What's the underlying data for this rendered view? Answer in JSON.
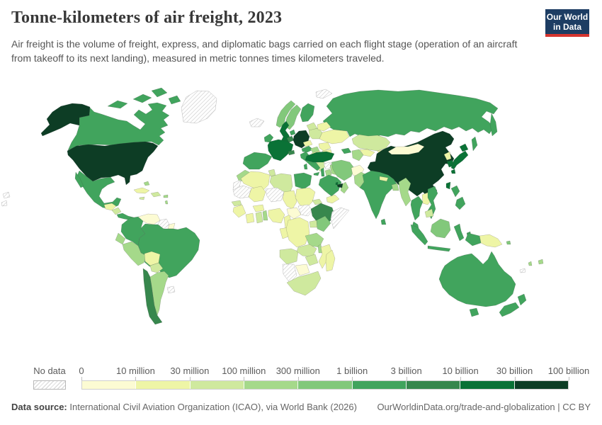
{
  "header": {
    "title": "Tonne-kilometers of air freight, 2023",
    "subtitle": "Air freight is the volume of freight, express, and diplomatic bags carried on each flight stage (operation of an aircraft from takeoff to its next landing), measured in metric tonnes times kilometers traveled."
  },
  "logo": {
    "line1": "Our World",
    "line2": "in Data",
    "bg_color": "#1d3d63",
    "accent_color": "#d5352f"
  },
  "chart_data": {
    "type": "choropleth_map",
    "title": "Tonne-kilometers of air freight, 2023",
    "year": 2023,
    "unit": "metric tonne-kilometers of air freight",
    "legend": {
      "no_data_label": "No data",
      "tick_labels": [
        "0",
        "10 million",
        "30 million",
        "100 million",
        "300 million",
        "1 billion",
        "3 billion",
        "10 billion",
        "30 billion",
        "100 billion"
      ],
      "bucket_ranges": [
        "0–10 million",
        "10–30 million",
        "30–100 million",
        "100–300 million",
        "300 million–1 billion",
        "1–3 billion",
        "3–10 billion",
        "10–30 billion",
        "30–100 billion"
      ],
      "colors": [
        "#fcfbd3",
        "#eef5a6",
        "#cfe99e",
        "#a5d98a",
        "#82c87b",
        "#41a45d",
        "#37874d",
        "#0a7236",
        "#0d3d25"
      ],
      "no_data_pattern": "diagonal-hatch",
      "position": "bottom"
    },
    "country_buckets": {
      "united-states": 8,
      "canada": 5,
      "greenland": "no-data",
      "mexico": 5,
      "guatemala": 1,
      "nicaragua": 2,
      "costa-rica-panama": 5,
      "cuba": 1,
      "jamaica": 2,
      "hispaniola": 2,
      "puerto-rico": 3,
      "bahamas": 3,
      "lesser-antilles": 3,
      "colombia": 5,
      "venezuela": 0,
      "guyana": "no-data",
      "suriname": 0,
      "ecuador": 3,
      "peru": 3,
      "brazil": 5,
      "bolivia": 1,
      "paraguay": 2,
      "chile": 6,
      "argentina": 3,
      "uruguay": "no-data",
      "iceland": "no-data",
      "svalbard": "no-data",
      "norway": 4,
      "sweden": 4,
      "finland": 5,
      "denmark": 5,
      "united-kingdom": 7,
      "ireland": 5,
      "france": 7,
      "belgium-netherlands": 6,
      "germany": 8,
      "switzerland": 6,
      "austria": 5,
      "czechia": 1,
      "poland": 2,
      "baltics": 2,
      "belarus": 1,
      "ukraine": 1,
      "romania": 1,
      "hungary": 3,
      "balkans": 1,
      "bulgaria": 1,
      "greece": 2,
      "italy": 5,
      "spain": 5,
      "russia": 5,
      "kazakhstan": 2,
      "uzbekistan": 1,
      "turkmenistan": 3,
      "kyrgyzstan-tajikistan": 1,
      "caucasus": 5,
      "turkey": 7,
      "syria": "no-data",
      "israel": 5,
      "jordan": 3,
      "iraq": 3,
      "iran": 4,
      "saudi-arabia": 5,
      "yemen": 1,
      "oman": 3,
      "united-arab-emirates": 8,
      "qatar": 7,
      "afghanistan": 0,
      "pakistan": 3,
      "india": 5,
      "nepal": 1,
      "bangladesh": 3,
      "sri-lanka": 5,
      "myanmar": 3,
      "thailand": 5,
      "laos": 1,
      "vietnam": 5,
      "cambodia": 2,
      "malaysia": 5,
      "indonesia": 5,
      "borneo": 4,
      "philippines": 5,
      "taiwan": 7,
      "china": 8,
      "mongolia": 0,
      "north-korea": 1,
      "south-korea": 7,
      "japan": 7,
      "morocco": 3,
      "western-sahara": "no-data",
      "algeria": 1,
      "tunisia": 2,
      "libya": 2,
      "egypt": 5,
      "mauritania": "no-data",
      "mali": 1,
      "niger": "no-data",
      "chad": 1,
      "sudan": 1,
      "south-sudan": "no-data",
      "eritrea": 2,
      "ethiopia": 6,
      "somalia": "no-data",
      "central-african-republic": 0,
      "senegal": 2,
      "guinea": 1,
      "cote-divoire": 1,
      "ghana": 2,
      "benin": 3,
      "burkina-faso": 1,
      "nigeria": 1,
      "cameroon": 1,
      "gabon": 1,
      "dr-congo": 1,
      "uganda": 2,
      "kenya": 4,
      "tanzania": 3,
      "angola": 2,
      "zambia": 2,
      "malawi": 3,
      "mozambique": 1,
      "zimbabwe": 2,
      "botswana": 0,
      "namibia": "no-data",
      "south-africa": 2,
      "madagascar": 1,
      "australia": 5,
      "new-zealand": 5,
      "papua-new-guinea": 1,
      "fiji": 3,
      "vanuatu": 3,
      "new-caledonia": "no-data",
      "solomon-islands": 4,
      "pacific-fragment": "no-data"
    }
  },
  "footer": {
    "source_label": "Data source:",
    "source_text": " International Civil Aviation Organization (ICAO), via World Bank (2026)",
    "link_text": "OurWorldinData.org/trade-and-globalization | CC BY"
  }
}
